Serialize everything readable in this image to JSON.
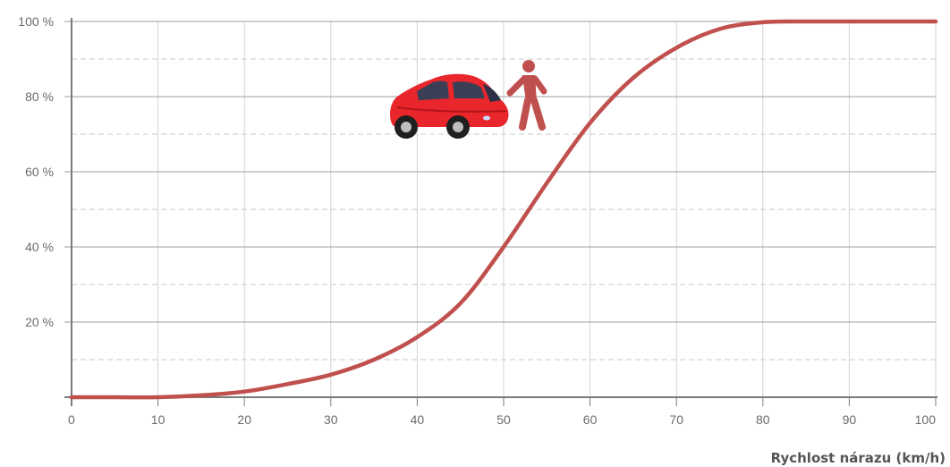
{
  "chart_data": {
    "type": "line",
    "title": "",
    "xlabel": "Rychlost nárazu (km/h)",
    "ylabel": "",
    "xlim": [
      0,
      100
    ],
    "ylim": [
      0,
      100
    ],
    "x_ticks": [
      0,
      10,
      20,
      30,
      40,
      50,
      60,
      70,
      80,
      90,
      100
    ],
    "x_tick_labels": [
      "0",
      "10",
      "20",
      "30",
      "40",
      "50",
      "60",
      "70",
      "80",
      "90",
      "100"
    ],
    "y_ticks": [
      20,
      40,
      60,
      80,
      100
    ],
    "y_tick_labels": [
      "20 %",
      "40 %",
      "60 %",
      "80 %",
      "100 %"
    ],
    "y_minor_ticks": [
      10,
      30,
      50,
      70,
      90
    ],
    "grid": true,
    "legend": "none",
    "series": [
      {
        "color": "#c0504d",
        "x": [
          0,
          5,
          10,
          15,
          20,
          25,
          30,
          35,
          40,
          45,
          50,
          55,
          60,
          65,
          70,
          75,
          80,
          85,
          90,
          95,
          100
        ],
        "y": [
          0,
          0,
          0,
          0.5,
          1.5,
          3.5,
          6,
          10,
          16,
          25,
          40,
          57,
          73,
          85,
          93,
          98,
          99.8,
          100,
          100,
          100,
          100
        ]
      }
    ],
    "annotations": [
      {
        "type": "illustration",
        "icon": "car-icon",
        "color": "#e8262b"
      },
      {
        "type": "illustration",
        "icon": "pedestrian-icon",
        "color": "#c0504d"
      }
    ]
  }
}
